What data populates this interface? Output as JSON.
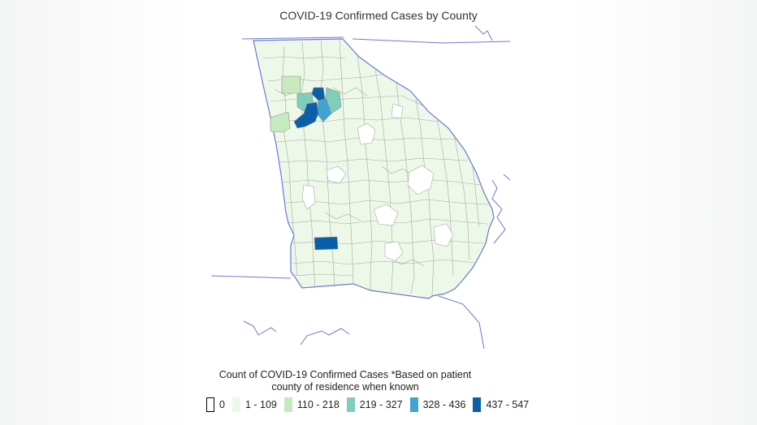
{
  "title": "COVID-19 Confirmed Cases by County",
  "legend": {
    "title_line1": "Count of COVID-19 Confirmed Cases *Based on patient",
    "title_line2": "county of residence when known",
    "bins": [
      {
        "label": "0",
        "color": "#ffffff",
        "outlined": true
      },
      {
        "label": "1 - 109",
        "color": "#edf8e9",
        "outlined": false
      },
      {
        "label": "110 - 218",
        "color": "#c7e9c0",
        "outlined": false
      },
      {
        "label": "219 - 327",
        "color": "#7fcdbb",
        "outlined": false
      },
      {
        "label": "328 - 436",
        "color": "#41a3d1",
        "outlined": false
      },
      {
        "label": "437 - 547",
        "color": "#0b5ea8",
        "outlined": false
      }
    ]
  },
  "colors": {
    "state_border": "#6b78d6",
    "county_border": "#9aa09a",
    "background": "#ffffff"
  }
}
